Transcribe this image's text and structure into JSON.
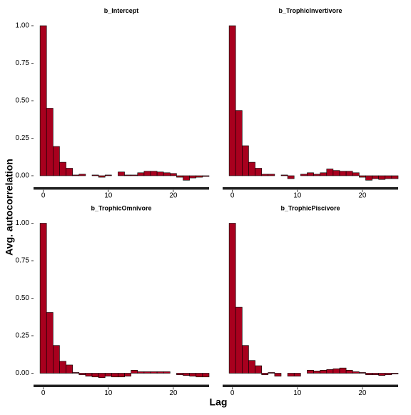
{
  "chart_data": {
    "type": "bar",
    "xlabel": "Lag",
    "ylabel": "Avg.  autocorrelation",
    "color": "#a8001e",
    "xlim": [
      -1.5,
      25.5
    ],
    "xticks": [
      0,
      10,
      20
    ],
    "ylim": [
      -0.08,
      1.05
    ],
    "yticks": [
      {
        "value": 0,
        "label": "0.00"
      },
      {
        "value": 0.25,
        "label": "0.25"
      },
      {
        "value": 0.5,
        "label": "0.50"
      },
      {
        "value": 0.75,
        "label": "0.75"
      },
      {
        "value": 1,
        "label": "1.00"
      }
    ],
    "x": [
      0,
      1,
      2,
      3,
      4,
      5,
      6,
      7,
      8,
      9,
      10,
      11,
      12,
      13,
      14,
      15,
      16,
      17,
      18,
      19,
      20,
      21,
      22,
      23,
      24,
      25
    ],
    "panels": [
      {
        "title": "b_Intercept",
        "values": [
          1.0,
          0.45,
          0.195,
          0.09,
          0.05,
          0.005,
          0.01,
          0.0,
          0.005,
          -0.01,
          0.005,
          0.0,
          0.025,
          0.005,
          0.005,
          0.02,
          0.03,
          0.03,
          0.025,
          0.02,
          0.015,
          -0.01,
          -0.03,
          -0.015,
          -0.01,
          -0.005
        ]
      },
      {
        "title": "b_TrophicInvertivore",
        "values": [
          1.0,
          0.435,
          0.2,
          0.09,
          0.05,
          0.01,
          0.01,
          0.0,
          0.005,
          -0.02,
          0.0,
          0.01,
          0.02,
          0.01,
          0.02,
          0.045,
          0.035,
          0.03,
          0.03,
          0.02,
          -0.01,
          -0.03,
          -0.02,
          -0.025,
          -0.02,
          -0.02
        ]
      },
      {
        "title": "b_TrophicOmnivore",
        "values": [
          1.0,
          0.405,
          0.185,
          0.08,
          0.055,
          0.005,
          -0.01,
          -0.02,
          -0.025,
          -0.03,
          -0.02,
          -0.025,
          -0.025,
          -0.02,
          0.02,
          0.01,
          0.01,
          0.01,
          0.01,
          0.01,
          0.0,
          -0.01,
          -0.015,
          -0.02,
          -0.025,
          -0.025
        ]
      },
      {
        "title": "b_TrophicPiscivore",
        "values": [
          1.0,
          0.44,
          0.185,
          0.085,
          0.05,
          -0.01,
          0.005,
          -0.02,
          0.0,
          -0.02,
          -0.02,
          0.0,
          0.02,
          0.015,
          0.02,
          0.025,
          0.03,
          0.035,
          0.02,
          0.01,
          0.005,
          -0.01,
          -0.01,
          -0.015,
          -0.01,
          -0.005
        ]
      }
    ]
  }
}
